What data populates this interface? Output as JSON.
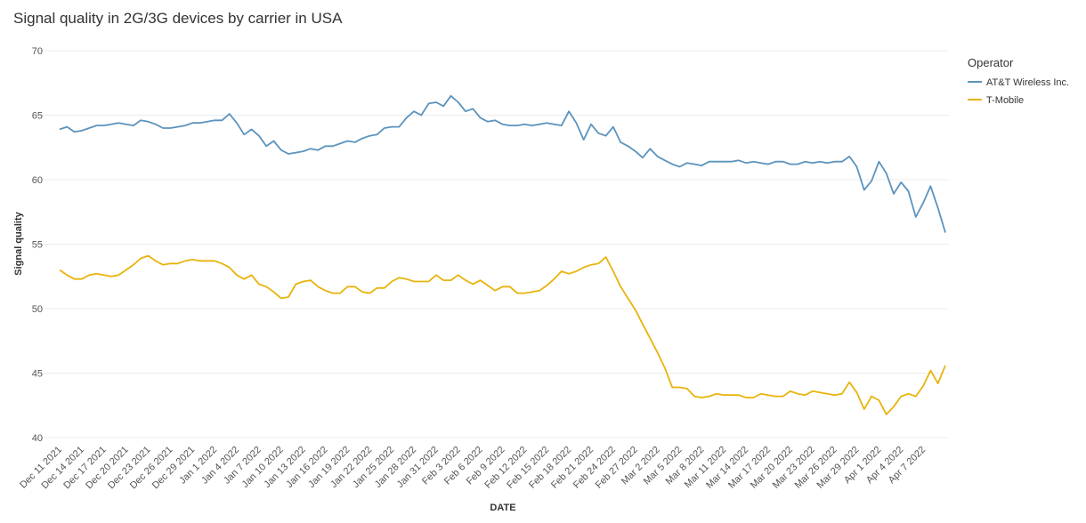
{
  "chart_data": {
    "type": "line",
    "title": "Signal quality in 2G/3G devices by carrier in USA",
    "x_label": "DATE",
    "y_label": "Signal quality",
    "legend_title": "Operator",
    "legend": "right",
    "grid": true,
    "ylim": [
      40,
      70
    ],
    "yticks": [
      40,
      45,
      50,
      55,
      60,
      65,
      70
    ],
    "categories": [
      "Dec 11 2021",
      null,
      null,
      "Dec 14 2021",
      null,
      null,
      "Dec 17 2021",
      null,
      null,
      "Dec 20 2021",
      null,
      null,
      "Dec 23 2021",
      null,
      null,
      "Dec 26 2021",
      null,
      null,
      "Dec 29 2021",
      null,
      null,
      "Jan 1 2022",
      null,
      null,
      "Jan 4 2022",
      null,
      null,
      "Jan 7 2022",
      null,
      null,
      "Jan 10 2022",
      null,
      null,
      "Jan 13 2022",
      null,
      null,
      "Jan 16 2022",
      null,
      null,
      "Jan 19 2022",
      null,
      null,
      "Jan 22 2022",
      null,
      null,
      "Jan 25 2022",
      null,
      null,
      "Jan 28 2022",
      null,
      null,
      "Jan 31 2022",
      null,
      null,
      "Feb 3 2022",
      null,
      null,
      "Feb 6 2022",
      null,
      null,
      "Feb 9 2022",
      null,
      null,
      "Feb 12 2022",
      null,
      null,
      "Feb 15 2022",
      null,
      null,
      "Feb 18 2022",
      null,
      null,
      "Feb 21 2022",
      null,
      null,
      "Feb 24 2022",
      null,
      null,
      "Feb 27 2022",
      null,
      null,
      "Mar 2 2022",
      null,
      null,
      "Mar 5 2022",
      null,
      null,
      "Mar 8 2022",
      null,
      null,
      "Mar 11 2022",
      null,
      null,
      "Mar 14 2022",
      null,
      null,
      "Mar 17 2022",
      null,
      null,
      "Mar 20 2022",
      null,
      null,
      "Mar 23 2022",
      null,
      null,
      "Mar 26 2022",
      null,
      null,
      "Mar 29 2022",
      null,
      null,
      "Apr 1 2022",
      null,
      null,
      "Apr 4 2022",
      null,
      null,
      "Apr 7 2022",
      null,
      null,
      null
    ],
    "series": [
      {
        "name": "AT&T Wireless Inc.",
        "color": "#5b93bd",
        "values": [
          63.9,
          64.1,
          63.7,
          63.8,
          64.0,
          64.2,
          64.2,
          64.3,
          64.4,
          64.3,
          64.2,
          64.6,
          64.5,
          64.3,
          64.0,
          64.0,
          64.1,
          64.2,
          64.4,
          64.4,
          64.5,
          64.6,
          64.6,
          65.1,
          64.4,
          63.5,
          63.9,
          63.4,
          62.6,
          63.0,
          62.3,
          62.0,
          62.1,
          62.2,
          62.4,
          62.3,
          62.6,
          62.6,
          62.8,
          63.0,
          62.9,
          63.2,
          63.4,
          63.5,
          64.0,
          64.1,
          64.1,
          64.8,
          65.3,
          65.0,
          65.9,
          66.0,
          65.7,
          66.5,
          66.0,
          65.3,
          65.5,
          64.8,
          64.5,
          64.6,
          64.3,
          64.2,
          64.2,
          64.3,
          64.2,
          64.3,
          64.4,
          64.3,
          64.2,
          65.3,
          64.4,
          63.1,
          64.3,
          63.6,
          63.4,
          64.1,
          62.9,
          62.6,
          62.2,
          61.7,
          62.4,
          61.8,
          61.5,
          61.2,
          61.0,
          61.3,
          61.2,
          61.1,
          61.4,
          61.4,
          61.4,
          61.4,
          61.5,
          61.3,
          61.4,
          61.3,
          61.2,
          61.4,
          61.4,
          61.2,
          61.2,
          61.4,
          61.3,
          61.4,
          61.3,
          61.4,
          61.4,
          61.8,
          61.0,
          59.2,
          59.9,
          61.4,
          60.5,
          58.9,
          59.8,
          59.1,
          57.1,
          58.2,
          59.5,
          57.8,
          55.9
        ]
      },
      {
        "name": "T-Mobile",
        "color": "#e8b40c",
        "values": [
          53.0,
          52.6,
          52.3,
          52.3,
          52.6,
          52.7,
          52.6,
          52.5,
          52.6,
          53.0,
          53.4,
          53.9,
          54.1,
          53.7,
          53.4,
          53.5,
          53.5,
          53.7,
          53.8,
          53.7,
          53.7,
          53.7,
          53.5,
          53.2,
          52.6,
          52.3,
          52.6,
          51.9,
          51.7,
          51.3,
          50.8,
          50.9,
          51.9,
          52.1,
          52.2,
          51.7,
          51.4,
          51.2,
          51.2,
          51.7,
          51.7,
          51.3,
          51.2,
          51.6,
          51.6,
          52.1,
          52.4,
          52.3,
          52.1,
          52.1,
          52.1,
          52.6,
          52.2,
          52.2,
          52.6,
          52.2,
          51.9,
          52.2,
          51.8,
          51.4,
          51.7,
          51.7,
          51.2,
          51.2,
          51.3,
          51.4,
          51.8,
          52.3,
          52.9,
          52.7,
          52.9,
          53.2,
          53.4,
          53.5,
          54.0,
          52.9,
          51.7,
          50.8,
          49.9,
          48.8,
          47.7,
          46.6,
          45.4,
          43.9,
          43.9,
          43.8,
          43.2,
          43.1,
          43.2,
          43.4,
          43.3,
          43.3,
          43.3,
          43.1,
          43.1,
          43.4,
          43.3,
          43.2,
          43.2,
          43.6,
          43.4,
          43.3,
          43.6,
          43.5,
          43.4,
          43.3,
          43.4,
          44.3,
          43.5,
          42.2,
          43.2,
          42.9,
          41.8,
          42.4,
          43.2,
          43.4,
          43.2,
          44.0,
          45.2,
          44.2,
          45.6
        ]
      }
    ]
  }
}
